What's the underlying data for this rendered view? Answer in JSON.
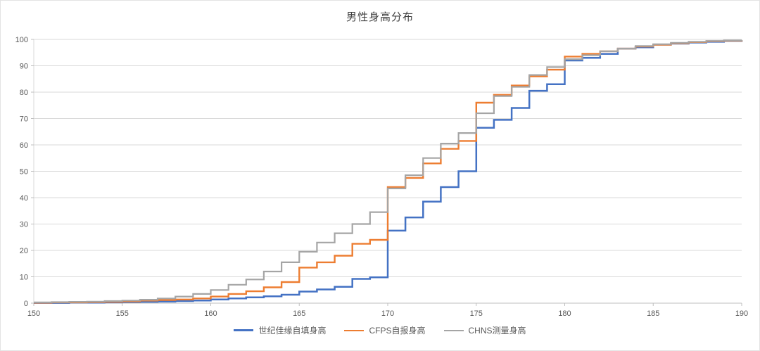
{
  "chart_data": {
    "type": "line",
    "subtype": "step-cdf",
    "title": "男性身高分布",
    "xlabel": "",
    "ylabel": "",
    "xlim": [
      150,
      190
    ],
    "ylim": [
      0,
      100
    ],
    "xticks": [
      150,
      155,
      160,
      165,
      170,
      175,
      180,
      185,
      190
    ],
    "yticks": [
      0,
      10,
      20,
      30,
      40,
      50,
      60,
      70,
      80,
      90,
      100
    ],
    "grid": "horizontal",
    "legend_position": "bottom",
    "x": [
      150,
      151,
      152,
      153,
      154,
      155,
      156,
      157,
      158,
      159,
      160,
      161,
      162,
      163,
      164,
      165,
      166,
      167,
      168,
      169,
      170,
      171,
      172,
      173,
      174,
      175,
      176,
      177,
      178,
      179,
      180,
      181,
      182,
      183,
      184,
      185,
      186,
      187,
      188,
      189,
      190
    ],
    "series": [
      {
        "name": "世纪佳缘自填身高",
        "color": "#4472C4",
        "width": 2.5,
        "values": [
          0.1,
          0.1,
          0.2,
          0.2,
          0.3,
          0.4,
          0.5,
          0.6,
          0.8,
          1.0,
          1.4,
          1.8,
          2.2,
          2.6,
          3.2,
          4.4,
          5.2,
          6.2,
          9.2,
          9.8,
          27.5,
          32.5,
          38.5,
          44.0,
          50.0,
          66.5,
          69.5,
          74.0,
          80.5,
          83.0,
          92.0,
          93.0,
          94.5,
          96.5,
          97.0,
          98.0,
          98.4,
          98.8,
          99.1,
          99.4,
          99.6
        ]
      },
      {
        "name": "CFPS自报身高",
        "color": "#ED7D31",
        "width": 2.4,
        "values": [
          0.2,
          0.3,
          0.3,
          0.4,
          0.5,
          0.7,
          1.0,
          1.2,
          1.4,
          1.8,
          2.5,
          3.5,
          4.5,
          6.0,
          8.0,
          13.5,
          15.5,
          18.0,
          22.5,
          24.0,
          44.0,
          47.5,
          53.0,
          58.5,
          61.5,
          76.0,
          79.0,
          82.5,
          86.0,
          88.5,
          93.5,
          94.5,
          95.5,
          96.5,
          97.3,
          98.0,
          98.5,
          99.0,
          99.3,
          99.5,
          99.7
        ]
      },
      {
        "name": "CHNS测量身高",
        "color": "#A5A5A5",
        "width": 2.2,
        "values": [
          0.3,
          0.4,
          0.5,
          0.6,
          0.8,
          1.0,
          1.3,
          1.8,
          2.5,
          3.5,
          5.0,
          7.0,
          9.0,
          12.0,
          15.5,
          19.5,
          23.0,
          26.5,
          30.0,
          34.5,
          43.5,
          48.5,
          55.0,
          60.5,
          64.5,
          72.0,
          78.5,
          82.0,
          86.5,
          89.5,
          92.5,
          94.0,
          95.5,
          96.5,
          97.5,
          98.2,
          98.7,
          99.1,
          99.4,
          99.6,
          99.8
        ]
      }
    ]
  },
  "colors": {
    "background": "#FFFFFF",
    "border": "#E3E3E3",
    "grid": "#D9D9D9",
    "axis": "#BFBFBF",
    "tick_label": "#595959",
    "title": "#404040"
  }
}
